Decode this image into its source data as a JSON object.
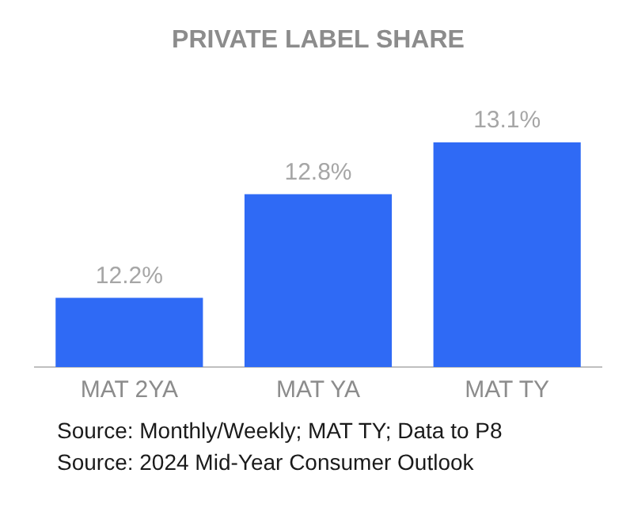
{
  "chart_data": {
    "type": "bar",
    "title": "PRIVATE LABEL SHARE",
    "categories": [
      "MAT 2YA",
      "MAT YA",
      "MAT TY"
    ],
    "values": [
      12.2,
      12.8,
      13.1
    ],
    "color": "#2f6af5",
    "value_labels": [
      "12.2%",
      "12.8%",
      "13.1%"
    ],
    "grid": false,
    "legend": false,
    "annotations": [
      "Source: Monthly/Weekly; MAT TY; Data to P8",
      "Source: 2024 Mid-Year Consumer Outlook"
    ]
  }
}
